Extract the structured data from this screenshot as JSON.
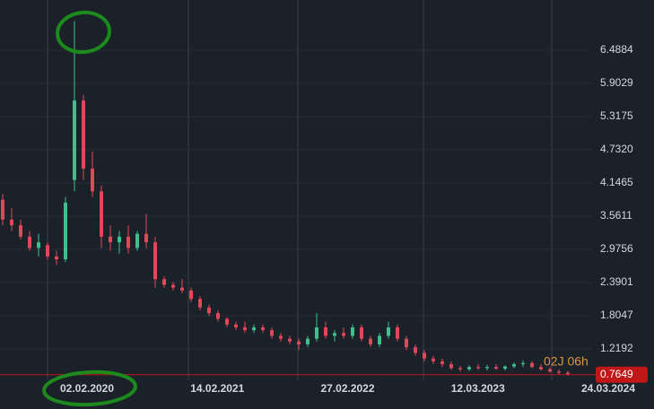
{
  "chart_data": {
    "type": "candlestick",
    "up_color": "#3fbf8c",
    "down_color": "#e0485a",
    "ylim": [
      0.666,
      7.374
    ],
    "yticks": [
      6.4884,
      5.9029,
      5.3175,
      {
        "value": 4.732,
        "label": "4.7320"
      },
      4.1465,
      3.5611,
      2.9756,
      2.3901,
      1.8047,
      1.2192
    ],
    "date_labels": [
      "02.02.2020",
      "14.02.2021",
      "27.02.2022",
      "12.03.2023",
      "24.03.2024"
    ],
    "last_price": 0.7649,
    "countdown": "02J 06h",
    "open": [
      3.85,
      3.5,
      3.4,
      3.2,
      3.0,
      3.05,
      2.85,
      2.8,
      4.2,
      5.6,
      4.4,
      4.0,
      3.2,
      3.1,
      3.2,
      3.0,
      3.25,
      3.1,
      2.45,
      2.35,
      2.3,
      2.25,
      2.1,
      1.95,
      1.85,
      1.75,
      1.65,
      1.6,
      1.55,
      1.6,
      1.55,
      1.45,
      1.4,
      1.35,
      1.3,
      1.4,
      1.6,
      1.45,
      1.5,
      1.45,
      1.6,
      1.4,
      1.3,
      1.45,
      1.6,
      1.4,
      1.25,
      1.15,
      1.05,
      1.0,
      0.95,
      0.88,
      0.86,
      0.9,
      0.88,
      0.9,
      0.87,
      0.91,
      0.95,
      0.97,
      0.9,
      0.86,
      0.82,
      0.8
    ],
    "high": [
      3.95,
      3.7,
      3.5,
      3.3,
      3.25,
      3.1,
      2.95,
      3.9,
      7.0,
      5.7,
      4.7,
      4.1,
      3.4,
      3.3,
      3.4,
      3.3,
      3.6,
      3.2,
      2.5,
      2.4,
      2.45,
      2.3,
      2.15,
      2.0,
      1.9,
      1.78,
      1.7,
      1.7,
      1.65,
      1.65,
      1.6,
      1.5,
      1.45,
      1.4,
      1.45,
      1.85,
      1.7,
      1.55,
      1.6,
      1.65,
      1.65,
      1.45,
      1.5,
      1.7,
      1.65,
      1.45,
      1.3,
      1.2,
      1.1,
      1.05,
      1.0,
      0.92,
      0.93,
      0.95,
      0.94,
      0.95,
      0.93,
      0.98,
      1.02,
      1.0,
      0.95,
      0.9,
      0.86,
      0.83
    ],
    "low": [
      3.4,
      3.3,
      3.15,
      2.95,
      2.85,
      2.8,
      2.7,
      2.75,
      4.0,
      4.2,
      3.9,
      3.0,
      2.95,
      2.9,
      2.9,
      2.95,
      3.0,
      2.3,
      2.3,
      2.25,
      2.2,
      2.05,
      1.9,
      1.8,
      1.7,
      1.6,
      1.55,
      1.5,
      1.5,
      1.5,
      1.4,
      1.35,
      1.3,
      1.2,
      1.25,
      1.35,
      1.4,
      1.35,
      1.4,
      1.4,
      1.35,
      1.25,
      1.25,
      1.4,
      1.35,
      1.2,
      1.1,
      1.0,
      0.95,
      0.9,
      0.85,
      0.82,
      0.83,
      0.85,
      0.84,
      0.85,
      0.84,
      0.88,
      0.9,
      0.88,
      0.84,
      0.8,
      0.77,
      0.75
    ],
    "close": [
      3.5,
      3.4,
      3.2,
      3.0,
      3.1,
      2.85,
      2.8,
      3.8,
      5.6,
      4.4,
      4.0,
      3.2,
      3.1,
      3.2,
      3.0,
      3.25,
      3.1,
      2.45,
      2.35,
      2.3,
      2.25,
      2.1,
      1.95,
      1.85,
      1.75,
      1.65,
      1.6,
      1.55,
      1.6,
      1.55,
      1.45,
      1.4,
      1.35,
      1.3,
      1.4,
      1.6,
      1.45,
      1.5,
      1.45,
      1.6,
      1.4,
      1.3,
      1.45,
      1.6,
      1.4,
      1.25,
      1.15,
      1.05,
      1.0,
      0.95,
      0.88,
      0.86,
      0.9,
      0.88,
      0.9,
      0.87,
      0.91,
      0.95,
      0.97,
      0.9,
      0.86,
      0.82,
      0.8,
      0.7649
    ]
  }
}
